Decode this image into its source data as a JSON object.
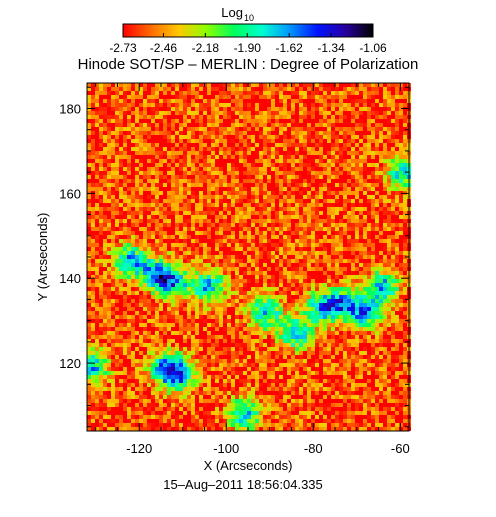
{
  "colorbar": {
    "label_main": "Log",
    "label_sub": "10",
    "ticks": [
      "-2.73",
      "-2.46",
      "-2.18",
      "-1.90",
      "-1.62",
      "-1.34",
      "-1.06"
    ],
    "range": [
      -2.73,
      -1.06
    ],
    "colormap": [
      "#ff0000",
      "#ff6a00",
      "#ffc800",
      "#8cff00",
      "#00ff5a",
      "#00ffd0",
      "#0096ff",
      "#0014ff",
      "#2800a0",
      "#000000"
    ]
  },
  "chart_data": {
    "type": "heatmap",
    "title": "Hinode SOT/SP – MERLIN : Degree of Polarization",
    "xlabel": "X (Arcseconds)",
    "ylabel": "Y (Arcseconds)",
    "xlim": [
      -132,
      -58
    ],
    "ylim": [
      104,
      186
    ],
    "xticks": [
      -120,
      -100,
      -80,
      -60
    ],
    "yticks": [
      120,
      140,
      160,
      180
    ],
    "value_scale": "log10",
    "value_range": [
      -2.73,
      -1.06
    ],
    "background_value": -2.6,
    "features": [
      {
        "kind": "enhanced-polarization",
        "x": -104,
        "y": 138
      },
      {
        "kind": "enhanced-polarization",
        "x": -112,
        "y": 139
      },
      {
        "kind": "enhanced-polarization",
        "x": -116,
        "y": 141
      },
      {
        "kind": "enhanced-polarization",
        "x": -122,
        "y": 144
      },
      {
        "kind": "enhanced-polarization",
        "x": -111,
        "y": 117
      },
      {
        "kind": "enhanced-polarization",
        "x": -114,
        "y": 119
      },
      {
        "kind": "enhanced-polarization",
        "x": -96,
        "y": 108
      },
      {
        "kind": "enhanced-polarization",
        "x": -91,
        "y": 132
      },
      {
        "kind": "enhanced-polarization",
        "x": -84,
        "y": 127
      },
      {
        "kind": "enhanced-polarization",
        "x": -73,
        "y": 134
      },
      {
        "kind": "enhanced-polarization",
        "x": -68,
        "y": 132
      },
      {
        "kind": "enhanced-polarization",
        "x": -64,
        "y": 138
      },
      {
        "kind": "enhanced-polarization",
        "x": -78,
        "y": 133
      },
      {
        "kind": "enhanced-polarization",
        "x": -131,
        "y": 119
      },
      {
        "kind": "enhanced-polarization",
        "x": -59,
        "y": 165
      }
    ]
  },
  "footer": {
    "timestamp": "15–Aug–2011 18:56:04.335"
  }
}
